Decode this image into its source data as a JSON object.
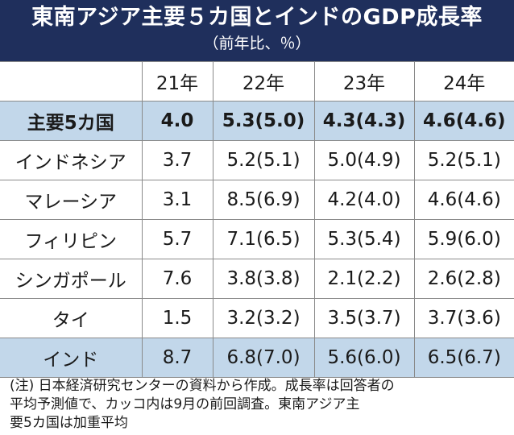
{
  "title": "東南アジア主要５カ国とインドのGDP成長率",
  "subtitle": "（前年比、％）",
  "table": {
    "columns": [
      "",
      "21年",
      "22年",
      "23年",
      "24年"
    ],
    "rows": [
      {
        "country": "主要5カ国",
        "v21": "4.0",
        "v22": "5.3(5.0)",
        "v23": "4.3(4.3)",
        "v24": "4.6(4.6)"
      },
      {
        "country": "インドネシア",
        "v21": "3.7",
        "v22": "5.2(5.1)",
        "v23": "5.0(4.9)",
        "v24": "5.2(5.1)"
      },
      {
        "country": "マレーシア",
        "v21": "3.1",
        "v22": "8.5(6.9)",
        "v23": "4.2(4.0)",
        "v24": "4.6(4.6)"
      },
      {
        "country": "フィリピン",
        "v21": "5.7",
        "v22": "7.1(6.5)",
        "v23": "5.3(5.4)",
        "v24": "5.9(6.0)"
      },
      {
        "country": "シンガポール",
        "v21": "7.6",
        "v22": "3.8(3.8)",
        "v23": "2.1(2.2)",
        "v24": "2.6(2.8)"
      },
      {
        "country": "タイ",
        "v21": "1.5",
        "v22": "3.2(3.2)",
        "v23": "3.5(3.7)",
        "v24": "3.7(3.6)"
      },
      {
        "country": "インド",
        "v21": "8.7",
        "v22": "6.8(7.0)",
        "v23": "5.6(6.0)",
        "v24": "6.5(6.7)"
      }
    ]
  },
  "note": {
    "line1": "(注) 日本経済研究センターの資料から作成。成長率は回答者の",
    "line2": "平均予測値で、カッコ内は9月の前回調査。東南アジア主",
    "line3": "要5カ国は加重平均"
  },
  "colors": {
    "header_bg": "#1f2f5c",
    "highlight_row": "#c2d7ea"
  }
}
